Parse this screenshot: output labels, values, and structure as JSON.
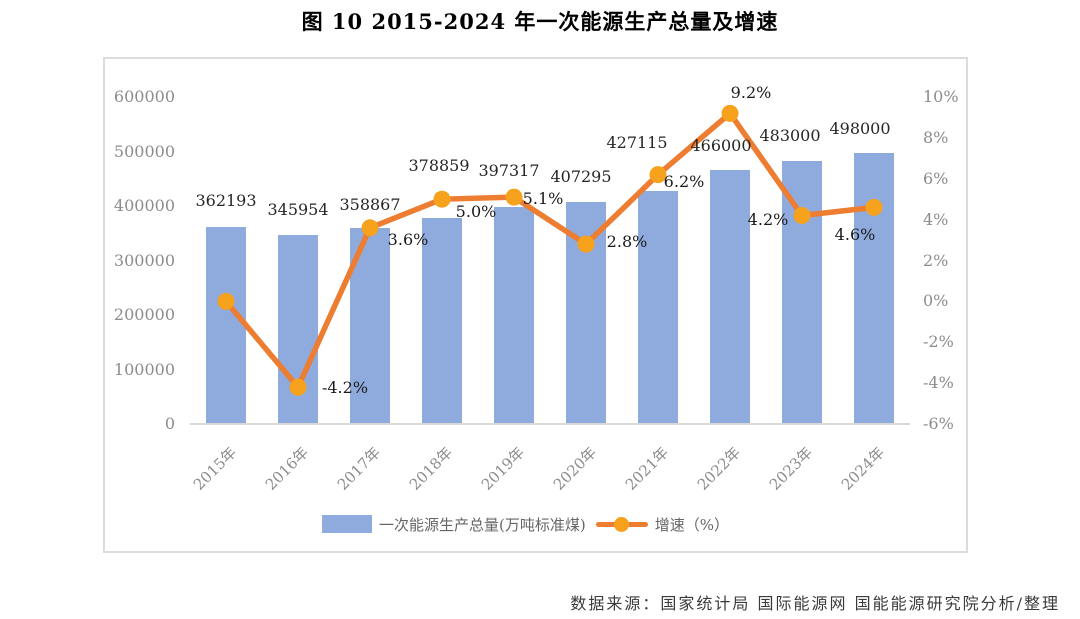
{
  "title": "图 10 2015-2024 年一次能源生产总量及增速",
  "footer": {
    "source_text": "数据来源：国家统计局 国际能源网 国能能源研究院分析/整理"
  },
  "colors": {
    "bar": "#8FAADC",
    "line": "#ED7D31",
    "marker": "#F6A21D",
    "axis_text": "#8C8C8C",
    "frame_border": "#DCDCDC"
  },
  "chart_data": {
    "type": "combo (bar + line)",
    "categories": [
      "2015年",
      "2016年",
      "2017年",
      "2018年",
      "2019年",
      "2020年",
      "2021年",
      "2022年",
      "2023年",
      "2024年"
    ],
    "series": [
      {
        "name": "一次能源生产总量(万吨标准煤)",
        "type": "bar",
        "y_axis": "left",
        "color": "#8FAADC",
        "values": [
          362193,
          345954,
          358867,
          378859,
          397317,
          407295,
          427115,
          466000,
          483000,
          498000
        ]
      },
      {
        "name": "增速（%）",
        "type": "line",
        "y_axis": "right",
        "color": "#ED7D31",
        "marker_color": "#F6A21D",
        "values": [
          0.0,
          -4.2,
          3.6,
          5.0,
          5.1,
          2.8,
          6.2,
          9.2,
          4.2,
          4.6
        ],
        "point_labels": [
          "",
          "-4.2%",
          "3.6%",
          "5.0%",
          "5.1%",
          "2.8%",
          "6.2%",
          "9.2%",
          "4.2%",
          "4.6%"
        ]
      }
    ],
    "left_axis": {
      "min": 0,
      "max": 600000,
      "tick_step": 100000,
      "tick_labels": [
        "600000",
        "500000",
        "400000",
        "300000",
        "200000",
        "100000",
        "0"
      ]
    },
    "right_axis": {
      "min": -6,
      "max": 10,
      "tick_step": 2,
      "tick_labels": [
        "10%",
        "8%",
        "6%",
        "4%",
        "2%",
        "0%",
        "-2%",
        "-4%",
        "-6%"
      ]
    },
    "grid": false,
    "legend_position": "bottom",
    "layout_hints": {
      "bar_label_y": [
        201,
        210,
        205,
        166,
        171,
        177,
        143,
        146,
        136,
        129
      ],
      "bar_label_dx": [
        0,
        0,
        0,
        -3,
        -5,
        -5,
        -21,
        -9,
        -12,
        -14
      ],
      "growth_label_centers": [
        null,
        [
          345,
          388
        ],
        [
          408,
          240
        ],
        [
          476,
          212
        ],
        [
          543,
          199
        ],
        [
          627,
          242
        ],
        [
          684,
          182
        ],
        [
          751,
          93
        ],
        [
          768,
          220
        ],
        [
          855,
          235
        ]
      ]
    }
  }
}
